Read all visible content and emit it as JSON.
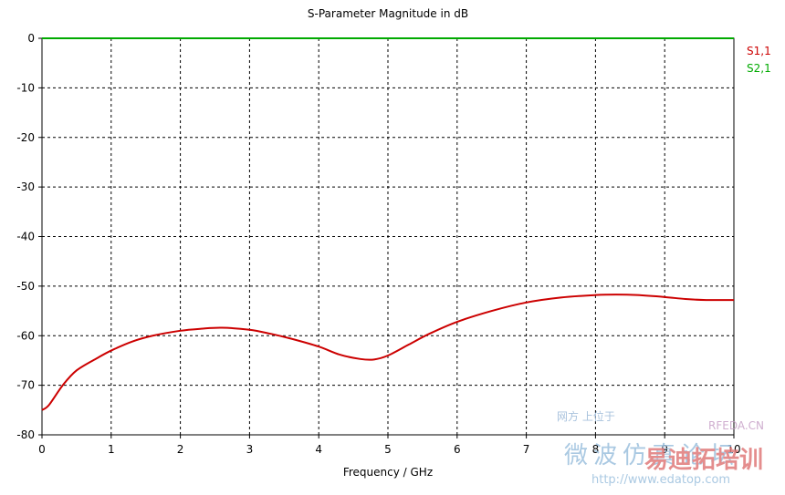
{
  "chart_data": {
    "type": "line",
    "title": "S-Parameter Magnitude in dB",
    "xlabel": "Frequency / GHz",
    "ylabel": "",
    "xlim": [
      0,
      10
    ],
    "ylim": [
      -80,
      0
    ],
    "x_ticks": [
      "0",
      "1",
      "2",
      "3",
      "4",
      "5",
      "6",
      "7",
      "8",
      "9",
      "10"
    ],
    "y_ticks": [
      "0",
      "-10",
      "-20",
      "-30",
      "-40",
      "-50",
      "-60",
      "-70",
      "-80"
    ],
    "grid": true,
    "legend_position": "right",
    "series": [
      {
        "name": "S1,1",
        "color": "#cc0000",
        "x": [
          0,
          0.1,
          0.3,
          0.5,
          0.8,
          1.0,
          1.3,
          1.6,
          2.0,
          2.3,
          2.6,
          3.0,
          3.3,
          3.6,
          4.0,
          4.3,
          4.6,
          4.8,
          5.0,
          5.3,
          5.6,
          6.0,
          6.5,
          7.0,
          7.5,
          8.0,
          8.3,
          8.6,
          9.0,
          9.3,
          9.6,
          10.0
        ],
        "y": [
          -75.0,
          -74.0,
          -70.0,
          -67.0,
          -64.5,
          -63.0,
          -61.2,
          -60.0,
          -59.0,
          -58.6,
          -58.4,
          -58.8,
          -59.6,
          -60.6,
          -62.2,
          -63.8,
          -64.7,
          -64.8,
          -64.0,
          -61.8,
          -59.6,
          -57.2,
          -55.0,
          -53.3,
          -52.3,
          -51.8,
          -51.7,
          -51.8,
          -52.2,
          -52.6,
          -52.8,
          -52.8
        ]
      },
      {
        "name": "S2,1",
        "color": "#00aa00",
        "x": [
          0,
          10
        ],
        "y": [
          0,
          0
        ]
      }
    ]
  },
  "watermark": {
    "line1": "网方 上位于",
    "line2": "RFEDA.CN",
    "line3": "微波仿真论坛",
    "brand": "易迪拓培训",
    "url": "http://www.edatop.com"
  }
}
